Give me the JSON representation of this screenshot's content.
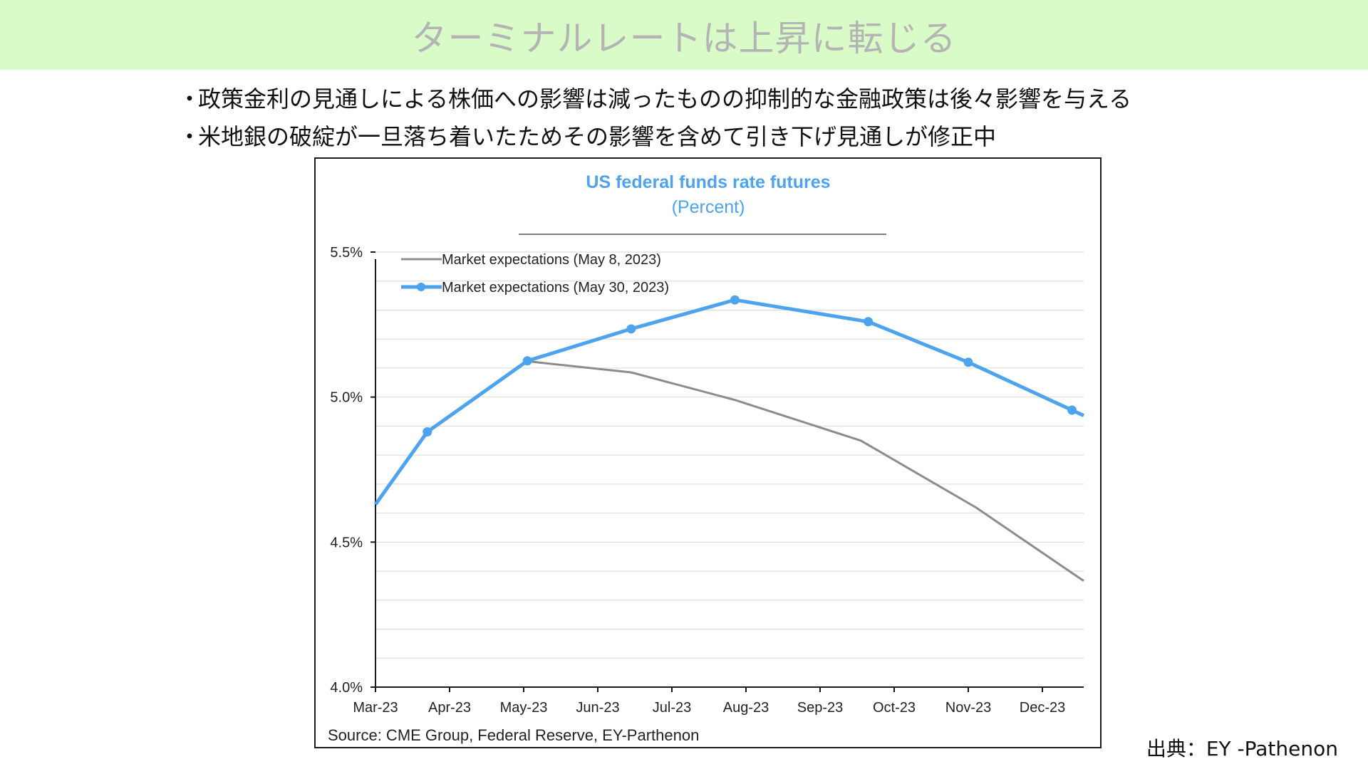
{
  "slide": {
    "title": "ターミナルレートは上昇に転じる",
    "bullets": [
      "政策金利の見通しによる株価への影響は減ったものの抑制的な金融政策は後々影響を与える",
      "米地銀の破綻が一旦落ち着いたためその影響を含めて引き下げ見通しが修正中"
    ],
    "bullet_marker": "・",
    "credit": "出典：EY -Pathenon"
  },
  "colors": {
    "title_band": "#d8fbc8",
    "series_may8": "#8c8c8c",
    "series_may30": "#4da3ee",
    "chart_title": "#4da3ee",
    "gridline": "#d9d9d9"
  },
  "chart_data": {
    "type": "line",
    "title": "US federal funds rate futures",
    "subtitle": "(Percent)",
    "xlabel": "",
    "ylabel": "",
    "categories": [
      "Mar-23",
      "Apr-23",
      "May-23",
      "Jun-23",
      "Jul-23",
      "Aug-23",
      "Sep-23",
      "Oct-23",
      "Nov-23",
      "Dec-23"
    ],
    "yticks": [
      "4.0%",
      "4.5%",
      "5.0%",
      "5.5%"
    ],
    "ylim": [
      4.0,
      5.5
    ],
    "grid": true,
    "legend_position": "top-left",
    "series": [
      {
        "name": "Market expectations (May 8, 2023)",
        "color": "#8c8c8c",
        "markers": false,
        "points": [
          [
            2.0,
            5.125
          ],
          [
            3.45,
            5.085
          ],
          [
            4.85,
            4.99
          ],
          [
            6.55,
            4.85
          ],
          [
            8.1,
            4.62
          ],
          [
            9.45,
            4.385
          ]
        ]
      },
      {
        "name": "Market expectations (May 30, 2023)",
        "color": "#4da3ee",
        "markers": true,
        "points": [
          [
            0.0,
            4.63
          ],
          [
            0.7,
            4.88
          ],
          [
            2.05,
            5.125
          ],
          [
            3.45,
            5.235
          ],
          [
            4.85,
            5.335
          ],
          [
            6.65,
            5.26
          ],
          [
            8.0,
            5.12
          ],
          [
            9.4,
            4.955
          ]
        ]
      }
    ],
    "source": "Source: CME Group, Federal Reserve, EY-Parthenon"
  }
}
